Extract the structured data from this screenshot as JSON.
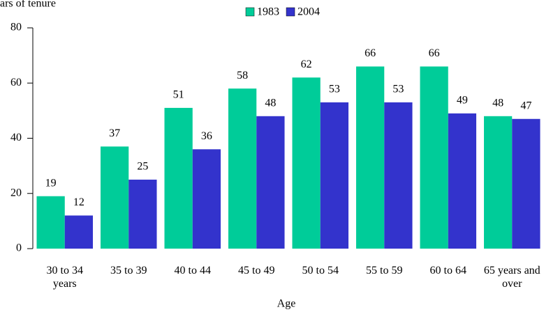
{
  "chart_data": {
    "type": "bar",
    "y_axis_title": "ars of tenure",
    "x_axis_title": "Age",
    "categories": [
      "30 to 34 years",
      "35 to 39",
      "40 to 44",
      "45 to 49",
      "50 to 54",
      "55 to 59",
      "60 to 64",
      "65 years and over"
    ],
    "series": [
      {
        "name": "1983",
        "color": "#00cc99",
        "values": [
          19,
          37,
          51,
          58,
          62,
          66,
          66,
          48
        ]
      },
      {
        "name": "2004",
        "color": "#3333cc",
        "values": [
          12,
          25,
          36,
          48,
          53,
          53,
          49,
          47
        ]
      }
    ],
    "ylim": [
      0,
      80
    ],
    "yticks": [
      0,
      20,
      40,
      60,
      80
    ],
    "grid": false,
    "legend": "top"
  }
}
